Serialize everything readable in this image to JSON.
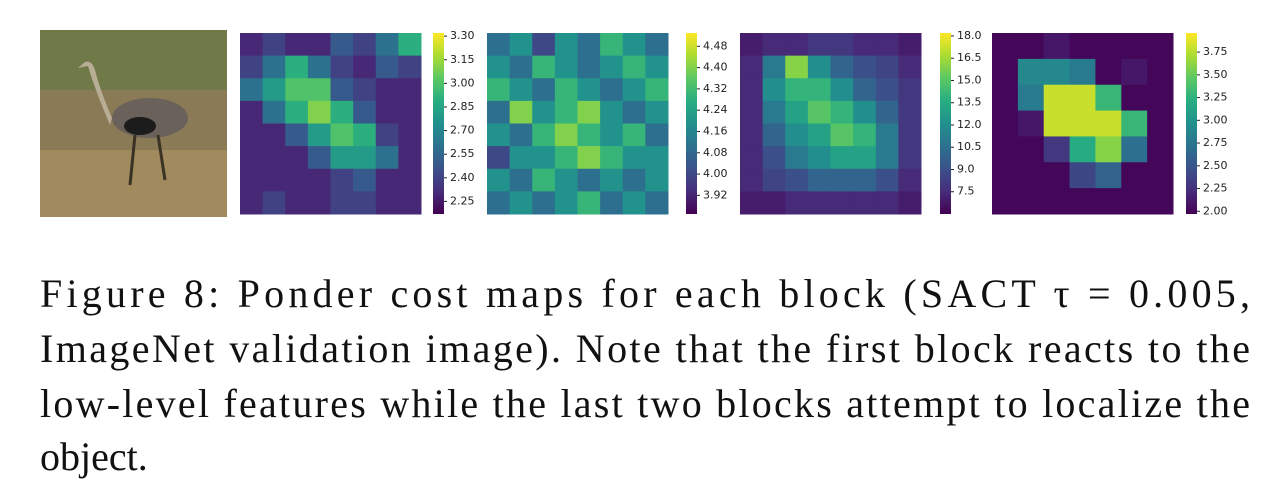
{
  "figure": {
    "panels": [
      {
        "clim": [
          2.17,
          3.32
        ],
        "ticks": [
          {
            "value": 2.25,
            "label": "2.25"
          },
          {
            "value": 2.4,
            "label": "2.40"
          },
          2.55,
          {
            "value": 2.7,
            "label": "2.70"
          },
          2.85,
          {
            "value": 3.0,
            "label": "3.00"
          },
          3.15,
          {
            "value": 3.3,
            "label": "3.30"
          }
        ],
        "cells": [
          [
            2.3,
            2.4,
            2.3,
            2.3,
            2.5,
            2.4,
            2.6,
            2.9
          ],
          [
            2.4,
            2.6,
            2.9,
            2.6,
            2.4,
            2.3,
            2.5,
            2.4
          ],
          [
            2.6,
            2.8,
            3.0,
            3.0,
            2.5,
            2.4,
            2.3,
            2.3
          ],
          [
            2.3,
            2.6,
            2.9,
            3.1,
            2.9,
            2.5,
            2.3,
            2.3
          ],
          [
            2.3,
            2.3,
            2.5,
            2.8,
            3.0,
            2.9,
            2.4,
            2.3
          ],
          [
            2.3,
            2.3,
            2.3,
            2.5,
            2.8,
            2.8,
            2.6,
            2.3
          ],
          [
            2.3,
            2.3,
            2.3,
            2.3,
            2.4,
            2.5,
            2.3,
            2.3
          ],
          [
            2.3,
            2.4,
            2.3,
            2.3,
            2.4,
            2.4,
            2.3,
            2.3
          ]
        ]
      },
      {
        "clim": [
          3.85,
          4.53
        ],
        "ticks": [
          3.92,
          {
            "value": 4.0,
            "label": "4.00"
          },
          4.08,
          4.16,
          4.24,
          4.32,
          {
            "value": 4.4,
            "label": "4.40"
          },
          4.48
        ],
        "cells": [
          [
            4.1,
            4.2,
            4.0,
            4.2,
            4.1,
            4.3,
            4.2,
            4.1
          ],
          [
            4.2,
            4.1,
            4.3,
            4.2,
            4.1,
            4.2,
            4.3,
            4.2
          ],
          [
            4.3,
            4.2,
            4.1,
            4.3,
            4.2,
            4.1,
            4.2,
            4.3
          ],
          [
            4.1,
            4.4,
            4.2,
            4.3,
            4.4,
            4.2,
            4.1,
            4.2
          ],
          [
            4.2,
            4.1,
            4.3,
            4.4,
            4.3,
            4.2,
            4.3,
            4.1
          ],
          [
            4.0,
            4.2,
            4.2,
            4.3,
            4.4,
            4.3,
            4.2,
            4.2
          ],
          [
            4.2,
            4.1,
            4.3,
            4.2,
            4.1,
            4.2,
            4.1,
            4.2
          ],
          [
            4.1,
            4.2,
            4.1,
            4.2,
            4.3,
            4.1,
            4.2,
            4.1
          ]
        ]
      },
      {
        "clim": [
          6.0,
          18.2
        ],
        "ticks": [
          7.5,
          {
            "value": 9.0,
            "label": "9.0"
          },
          10.5,
          {
            "value": 12.0,
            "label": "12.0"
          },
          13.5,
          {
            "value": 15.0,
            "label": "15.0"
          },
          16.5,
          {
            "value": 18.0,
            "label": "18.0"
          }
        ],
        "cells": [
          [
            7,
            7.5,
            7.5,
            8,
            8,
            7.5,
            7.5,
            7
          ],
          [
            7.5,
            11,
            16,
            12,
            10,
            9,
            8.5,
            7.5
          ],
          [
            7.5,
            12,
            14,
            14,
            12,
            10,
            9,
            8
          ],
          [
            7.5,
            11,
            13,
            15,
            14,
            12,
            10,
            8
          ],
          [
            7.5,
            10,
            12,
            13,
            15,
            14,
            11,
            8
          ],
          [
            7.5,
            9,
            11,
            12,
            13,
            13,
            11,
            8
          ],
          [
            7.5,
            8.5,
            9,
            10,
            10,
            10,
            9,
            7.5
          ],
          [
            7,
            7,
            7.5,
            7.5,
            7.5,
            7.5,
            7.5,
            7
          ]
        ]
      },
      {
        "clim": [
          1.97,
          3.96
        ],
        "ticks": [
          {
            "value": 2.0,
            "label": "2.00"
          },
          2.25,
          {
            "value": 2.5,
            "label": "2.50"
          },
          2.75,
          {
            "value": 3.0,
            "label": "3.00"
          },
          3.25,
          {
            "value": 3.5,
            "label": "3.50"
          },
          3.75
        ],
        "cells": [
          [
            2.0,
            2.0,
            2.1,
            2.0,
            2.0,
            2.0,
            2.0
          ],
          [
            2.0,
            2.9,
            2.9,
            2.8,
            2.0,
            2.1,
            2.0
          ],
          [
            2.0,
            2.8,
            3.8,
            3.8,
            3.3,
            2.0,
            2.0
          ],
          [
            2.0,
            2.1,
            3.8,
            3.8,
            3.8,
            3.3,
            2.0
          ],
          [
            2.0,
            2.0,
            2.3,
            3.2,
            3.6,
            2.7,
            2.0
          ],
          [
            2.0,
            2.0,
            2.0,
            2.4,
            2.6,
            2.0,
            2.0
          ],
          [
            2.0,
            2.0,
            2.0,
            2.0,
            2.0,
            2.0,
            2.0
          ]
        ]
      }
    ]
  },
  "caption": {
    "lines": [
      "Figure 8: Ponder cost maps for each block (SACT τ = 0.005,",
      "ImageNet validation image). Note that the first block reacts to the",
      "low-level features while the last two blocks attempt to localize the",
      "object."
    ]
  }
}
